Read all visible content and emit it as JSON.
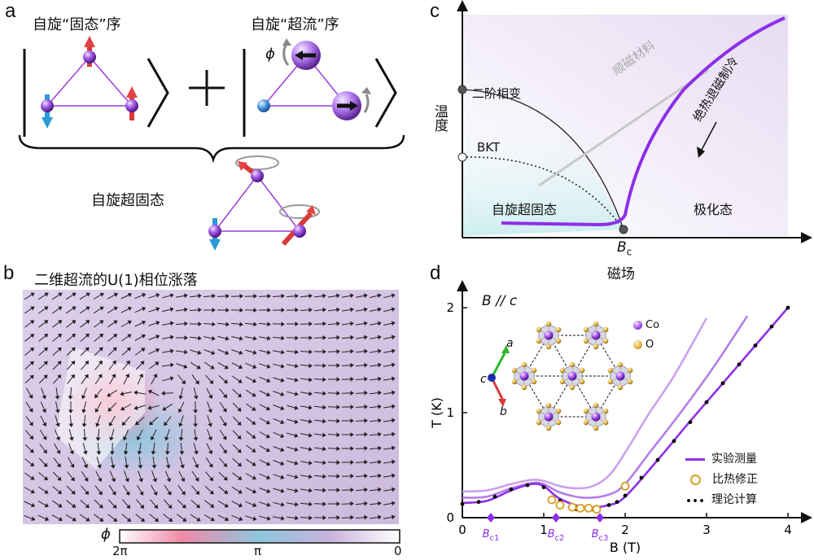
{
  "panels": {
    "a": {
      "letter": "a",
      "solid_order_label": "自旋“固态”序",
      "superfluid_order_label": "自旋“超流”序",
      "phi_symbol": "ϕ",
      "supersolid_label": "自旋超固态"
    },
    "b": {
      "letter": "b",
      "title": "二维超流的U(1)相位涨落",
      "colorbar_symbol": "ϕ",
      "colorbar_ticks": [
        "2π",
        "π",
        "0"
      ]
    },
    "c": {
      "letter": "c",
      "y_axis_label": "温度",
      "x_axis_label": "磁场",
      "bc_label": "B",
      "bc_sub": "c",
      "second_order_label": "二阶相变",
      "bkt_label": "BKT",
      "paramagnet_label": "顺磁材料",
      "adiabatic_label": "绝热退磁制冷",
      "supersolid_region_label": "自旋超固态",
      "polarized_label": "极化态"
    },
    "d": {
      "letter": "d",
      "field_direction_label": "B // c",
      "lattice_axes": {
        "a": "a",
        "b": "b",
        "c": "c"
      },
      "atom_legend": [
        {
          "symbol": "Co",
          "color": "#8a2be2"
        },
        {
          "symbol": "O",
          "color": "#e0b040"
        }
      ],
      "legend": [
        {
          "label": "实验测量",
          "kind": "line",
          "color": "#8e2fe8"
        },
        {
          "label": "比热修正",
          "kind": "circle",
          "color": "#d4a020"
        },
        {
          "label": "理论计算",
          "kind": "dots",
          "color": "#000000"
        }
      ],
      "critical_fields": [
        {
          "label": "B",
          "sub": "c1",
          "x": 0.35
        },
        {
          "label": "B",
          "sub": "c2",
          "x": 1.15
        },
        {
          "label": "B",
          "sub": "c3",
          "x": 1.69
        }
      ]
    }
  },
  "chart_data": {
    "type": "line",
    "title": "",
    "xlabel": "B (T)",
    "ylabel": "T (K)",
    "xlim": [
      0,
      4
    ],
    "ylim": [
      0,
      2
    ],
    "x_ticks": [
      "0",
      "1",
      "2",
      "3",
      "4"
    ],
    "y_ticks": [
      "0",
      "1",
      "2"
    ],
    "series": [
      {
        "name": "实验测量",
        "color": "#c9a2ee",
        "x": [
          0,
          0.3,
          0.6,
          0.85,
          1.0,
          1.2,
          1.4,
          1.6,
          1.8,
          2.0,
          2.3,
          2.6,
          3.0
        ],
        "y": [
          0.25,
          0.26,
          0.32,
          0.36,
          0.35,
          0.3,
          0.28,
          0.3,
          0.4,
          0.62,
          1.0,
          1.35,
          1.9
        ]
      },
      {
        "name": "实验测量",
        "color": "#b47ee8",
        "x": [
          0,
          0.3,
          0.6,
          0.85,
          1.0,
          1.2,
          1.5,
          1.8,
          2.0,
          2.3,
          2.7,
          3.1,
          3.5
        ],
        "y": [
          0.19,
          0.2,
          0.28,
          0.33,
          0.32,
          0.24,
          0.19,
          0.22,
          0.32,
          0.62,
          1.02,
          1.45,
          1.92
        ]
      },
      {
        "name": "实验测量",
        "color": "#8e2fe8",
        "x": [
          0,
          0.3,
          0.6,
          0.85,
          1.0,
          1.2,
          1.5,
          1.8,
          2.0,
          2.4,
          2.8,
          3.2,
          3.6,
          4.0
        ],
        "y": [
          0.14,
          0.16,
          0.26,
          0.32,
          0.3,
          0.18,
          0.1,
          0.12,
          0.2,
          0.55,
          0.92,
          1.28,
          1.64,
          2.0
        ]
      },
      {
        "name": "理论计算",
        "style": "dots",
        "color": "#000000",
        "x": [
          0,
          0.2,
          0.4,
          0.6,
          0.8,
          1.0,
          1.2,
          1.4,
          1.6,
          1.8,
          1.9,
          2.0,
          2.2,
          2.4,
          2.6,
          2.8,
          3.0,
          3.2,
          3.4,
          3.6,
          3.8,
          4.0
        ],
        "y": [
          0.13,
          0.15,
          0.2,
          0.27,
          0.31,
          0.29,
          0.16,
          0.08,
          0.08,
          0.12,
          0.15,
          0.21,
          0.38,
          0.55,
          0.73,
          0.91,
          1.1,
          1.28,
          1.46,
          1.64,
          1.82,
          2.0
        ]
      },
      {
        "name": "比热修正",
        "style": "open-circle",
        "color": "#d4a020",
        "x": [
          1.1,
          1.2,
          1.35,
          1.45,
          1.55,
          1.65,
          2.0
        ],
        "y": [
          0.17,
          0.12,
          0.1,
          0.09,
          0.09,
          0.08,
          0.3
        ]
      }
    ]
  }
}
